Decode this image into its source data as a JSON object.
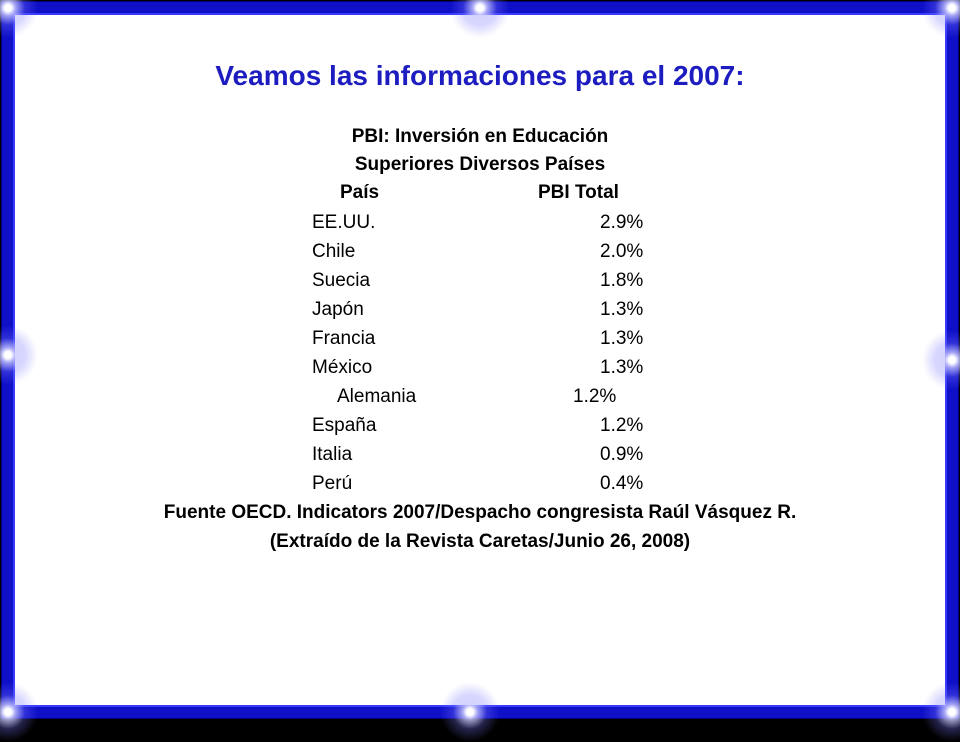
{
  "title": "Veamos las informaciones para el 2007:",
  "table": {
    "caption": [
      "PBI: Inversión en Educación",
      "Superiores Diversos Países"
    ],
    "header": [
      "País",
      "PBI Total"
    ],
    "rows": [
      [
        "EE.UU.",
        "2.9%"
      ],
      [
        "Chile",
        "2.0%"
      ],
      [
        "Suecia",
        "1.8%"
      ],
      [
        "Japón",
        "1.3%"
      ],
      [
        "Francia",
        "1.3%"
      ],
      [
        "México",
        "1.3%"
      ],
      [
        "Alemania",
        "1.2%"
      ],
      [
        "España",
        "1.2%"
      ],
      [
        "Italia",
        "0.9%"
      ],
      [
        "Perú",
        "0.4%"
      ]
    ]
  },
  "source": [
    "Fuente OECD. Indicators 2007/Despacho congresista Raúl Vásquez R.",
    "(Extraído de la Revista Caretas/Junio 26, 2008)"
  ]
}
